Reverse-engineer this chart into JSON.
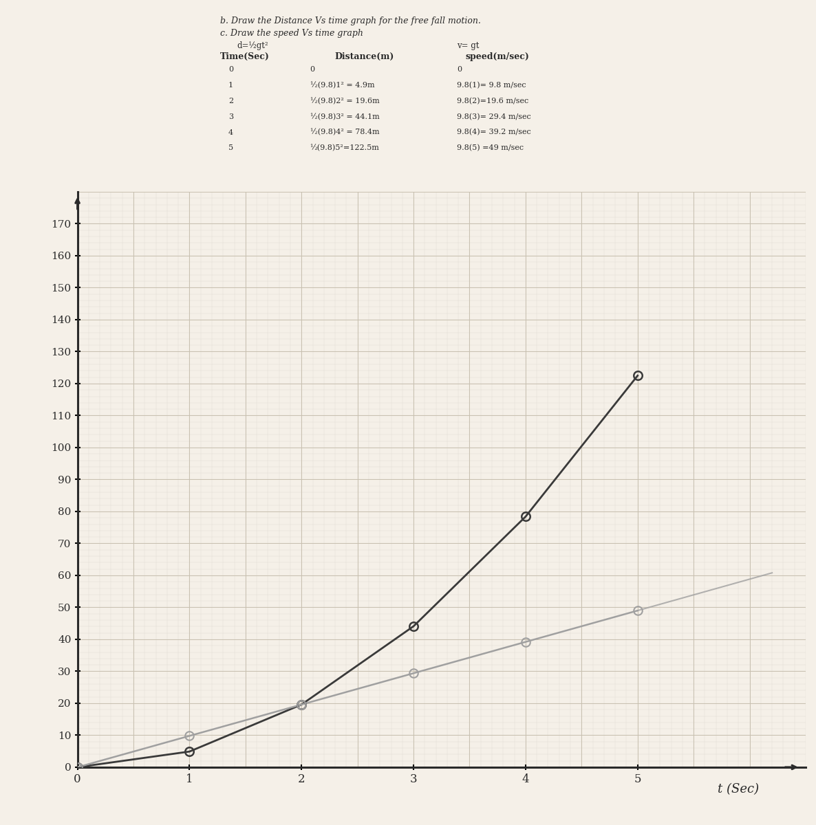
{
  "time": [
    0,
    1,
    2,
    3,
    4,
    5
  ],
  "distance": [
    0,
    4.9,
    19.6,
    44.1,
    78.4,
    122.5
  ],
  "speed": [
    0,
    9.8,
    19.6,
    29.4,
    39.2,
    49.0
  ],
  "xlabel": "t (Sec)",
  "xlim": [
    0,
    6.5
  ],
  "ylim": [
    0,
    180
  ],
  "yticks": [
    0,
    10,
    20,
    30,
    40,
    50,
    60,
    70,
    80,
    90,
    100,
    110,
    120,
    130,
    140,
    150,
    160,
    170
  ],
  "xticks": [
    0,
    1,
    2,
    3,
    4,
    5
  ],
  "distance_color": "#3a3a3a",
  "speed_color": "#a0a0a0",
  "background_color": "#f5f0e8",
  "grid_major_color": "#c8c0b0",
  "grid_minor_color": "#ddd8d0",
  "axis_color": "#2a2a2a"
}
